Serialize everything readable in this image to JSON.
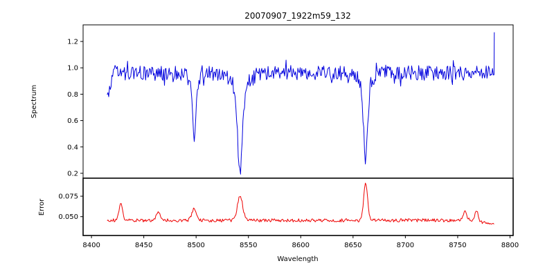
{
  "figure_title": "20070907_1922m59_132",
  "xticks": [
    {
      "value": 8400,
      "label": "8400"
    },
    {
      "value": 8450,
      "label": "8450"
    },
    {
      "value": 8500,
      "label": "8500"
    },
    {
      "value": 8550,
      "label": "8550"
    },
    {
      "value": 8600,
      "label": "8600"
    },
    {
      "value": 8650,
      "label": "8650"
    },
    {
      "value": 8700,
      "label": "8700"
    },
    {
      "value": 8750,
      "label": "8750"
    },
    {
      "value": 8800,
      "label": "8800"
    }
  ],
  "chart_data": [
    {
      "type": "line",
      "name": "spectrum",
      "title": "20070907_1922m59_132",
      "ylabel": "Spectrum",
      "color": "#0000dd",
      "legend": "none",
      "grid": false,
      "xlim": [
        8392,
        8803
      ],
      "ylim": [
        0.163,
        1.326
      ],
      "yticks": [
        {
          "value": 0.2,
          "label": "0.2"
        },
        {
          "value": 0.4,
          "label": "0.4"
        },
        {
          "value": 0.6,
          "label": "0.6"
        },
        {
          "value": 0.8,
          "label": "0.8"
        },
        {
          "value": 1.0,
          "label": "1.0"
        },
        {
          "value": 1.2,
          "label": "1.2"
        }
      ],
      "x_start": 8415,
      "x_end": 8785,
      "x_step": 0.75,
      "continuum": 0.96,
      "noise_peak_to_peak": 0.11,
      "start_dip_value": 0.8,
      "edge_spike_value": 1.27,
      "absorption_lines": [
        {
          "center": 8498,
          "min_value": 0.48,
          "core_width": 2.2,
          "wing_width": 7
        },
        {
          "center": 8542,
          "min_value": 0.21,
          "core_width": 3.2,
          "wing_width": 11
        },
        {
          "center": 8662,
          "min_value": 0.3,
          "core_width": 2.6,
          "wing_width": 8
        }
      ]
    },
    {
      "type": "line",
      "name": "error",
      "xlabel": "Wavelength",
      "ylabel": "Error",
      "color": "#ee0000",
      "legend": "none",
      "grid": false,
      "xlim": [
        8392,
        8803
      ],
      "ylim": [
        0.027,
        0.097
      ],
      "yticks": [
        {
          "value": 0.05,
          "label": "0.050"
        },
        {
          "value": 0.075,
          "label": "0.075"
        }
      ],
      "baseline": 0.0455,
      "noise_peak_to_peak": 0.004,
      "end_drop_value": 0.04,
      "peaks": [
        {
          "center": 8428,
          "peak_value": 0.066,
          "width": 2.5
        },
        {
          "center": 8464,
          "peak_value": 0.057,
          "width": 2.5
        },
        {
          "center": 8498,
          "peak_value": 0.06,
          "width": 3.0
        },
        {
          "center": 8542,
          "peak_value": 0.076,
          "width": 3.5
        },
        {
          "center": 8662,
          "peak_value": 0.092,
          "width": 2.5
        },
        {
          "center": 8757,
          "peak_value": 0.056,
          "width": 2.5
        },
        {
          "center": 8768,
          "peak_value": 0.058,
          "width": 2.0
        }
      ]
    }
  ]
}
